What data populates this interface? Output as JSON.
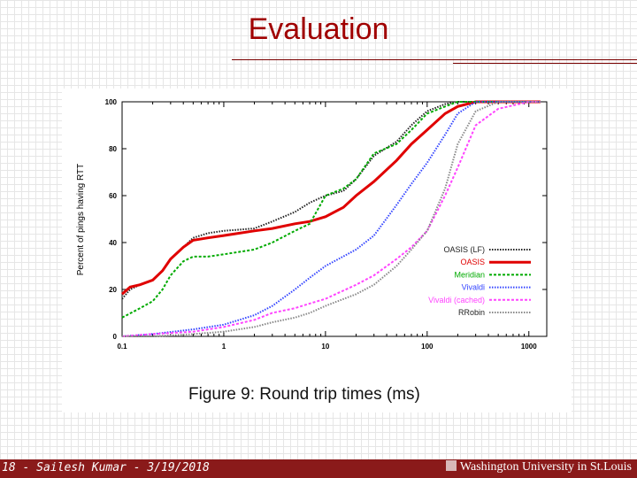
{
  "slide": {
    "title": "Evaluation",
    "footer_left": "18 - Sailesh Kumar - 3/19/2018",
    "footer_right": "Washington University in St.Louis"
  },
  "chart_data": {
    "type": "line",
    "title": "Figure 9: Round trip times (ms)",
    "xlabel": "",
    "ylabel": "Percent of pings having RTT",
    "x_scale": "log",
    "xlim": [
      0.1,
      1500
    ],
    "ylim": [
      0,
      100
    ],
    "x_ticks": [
      "0.1",
      "1",
      "10",
      "100",
      "1000"
    ],
    "x_tick_values": [
      0.1,
      1,
      10,
      100,
      1000
    ],
    "y_ticks": [
      "0",
      "20",
      "40",
      "60",
      "80",
      "100"
    ],
    "y_tick_values": [
      0,
      20,
      40,
      60,
      80,
      100
    ],
    "grid": false,
    "legend_position": "lower-right",
    "series": [
      {
        "name": "OASIS (LF)",
        "color": "#222222",
        "style": "dotted",
        "x": [
          0.1,
          0.12,
          0.15,
          0.2,
          0.25,
          0.3,
          0.4,
          0.5,
          0.7,
          1,
          2,
          3,
          5,
          7,
          10,
          15,
          20,
          30,
          50,
          70,
          100,
          150,
          200,
          300,
          500,
          1000,
          1300
        ],
        "y": [
          16,
          20,
          22,
          24,
          28,
          33,
          38,
          42,
          44,
          45,
          46,
          49,
          53,
          57,
          60,
          62,
          67,
          77,
          83,
          90,
          96,
          99,
          100,
          100,
          100,
          100,
          100
        ]
      },
      {
        "name": "OASIS",
        "color": "#e00000",
        "style": "solid",
        "x": [
          0.1,
          0.12,
          0.15,
          0.2,
          0.25,
          0.3,
          0.4,
          0.5,
          0.7,
          1,
          2,
          3,
          5,
          7,
          10,
          15,
          20,
          30,
          50,
          70,
          100,
          150,
          200,
          300,
          500,
          1000,
          1300
        ],
        "y": [
          18,
          21,
          22,
          24,
          28,
          33,
          38,
          41,
          42,
          43,
          45,
          46,
          48,
          49,
          51,
          55,
          60,
          66,
          75,
          82,
          88,
          95,
          98,
          100,
          100,
          100,
          100
        ]
      },
      {
        "name": "Meridian",
        "color": "#00aa00",
        "style": "dashed",
        "x": [
          0.1,
          0.15,
          0.2,
          0.25,
          0.3,
          0.4,
          0.5,
          0.7,
          1,
          2,
          3,
          5,
          7,
          10,
          15,
          20,
          30,
          50,
          70,
          100,
          150,
          200,
          300,
          500,
          1000,
          1300
        ],
        "y": [
          8,
          12,
          15,
          20,
          26,
          32,
          34,
          34,
          35,
          37,
          40,
          45,
          48,
          60,
          63,
          67,
          78,
          82,
          88,
          95,
          98,
          100,
          100,
          100,
          100,
          100
        ]
      },
      {
        "name": "Vivaldi",
        "color": "#3344ff",
        "style": "dotted",
        "x": [
          0.1,
          0.2,
          0.5,
          1,
          2,
          3,
          5,
          7,
          10,
          20,
          30,
          50,
          70,
          100,
          150,
          200,
          300,
          500,
          1000,
          1300
        ],
        "y": [
          0,
          1,
          3,
          5,
          9,
          13,
          20,
          25,
          30,
          37,
          43,
          56,
          65,
          74,
          86,
          95,
          100,
          100,
          100,
          100
        ]
      },
      {
        "name": "Vivaldi (cached)",
        "color": "#ff44ff",
        "style": "dashed",
        "x": [
          0.1,
          0.2,
          0.5,
          1,
          2,
          3,
          5,
          7,
          10,
          20,
          30,
          50,
          70,
          100,
          150,
          200,
          300,
          500,
          1000,
          1300
        ],
        "y": [
          0,
          1,
          2,
          4,
          7,
          10,
          12,
          14,
          16,
          22,
          26,
          33,
          38,
          45,
          60,
          72,
          90,
          97,
          100,
          100
        ]
      },
      {
        "name": "RRobin",
        "color": "#888888",
        "style": "dotted",
        "x": [
          0.1,
          0.2,
          0.5,
          1,
          2,
          3,
          5,
          7,
          10,
          20,
          30,
          50,
          70,
          100,
          150,
          200,
          300,
          500,
          1000,
          1300
        ],
        "y": [
          0,
          0,
          1,
          2,
          4,
          6,
          8,
          10,
          13,
          18,
          22,
          30,
          37,
          45,
          63,
          82,
          96,
          100,
          100,
          100
        ]
      }
    ]
  }
}
